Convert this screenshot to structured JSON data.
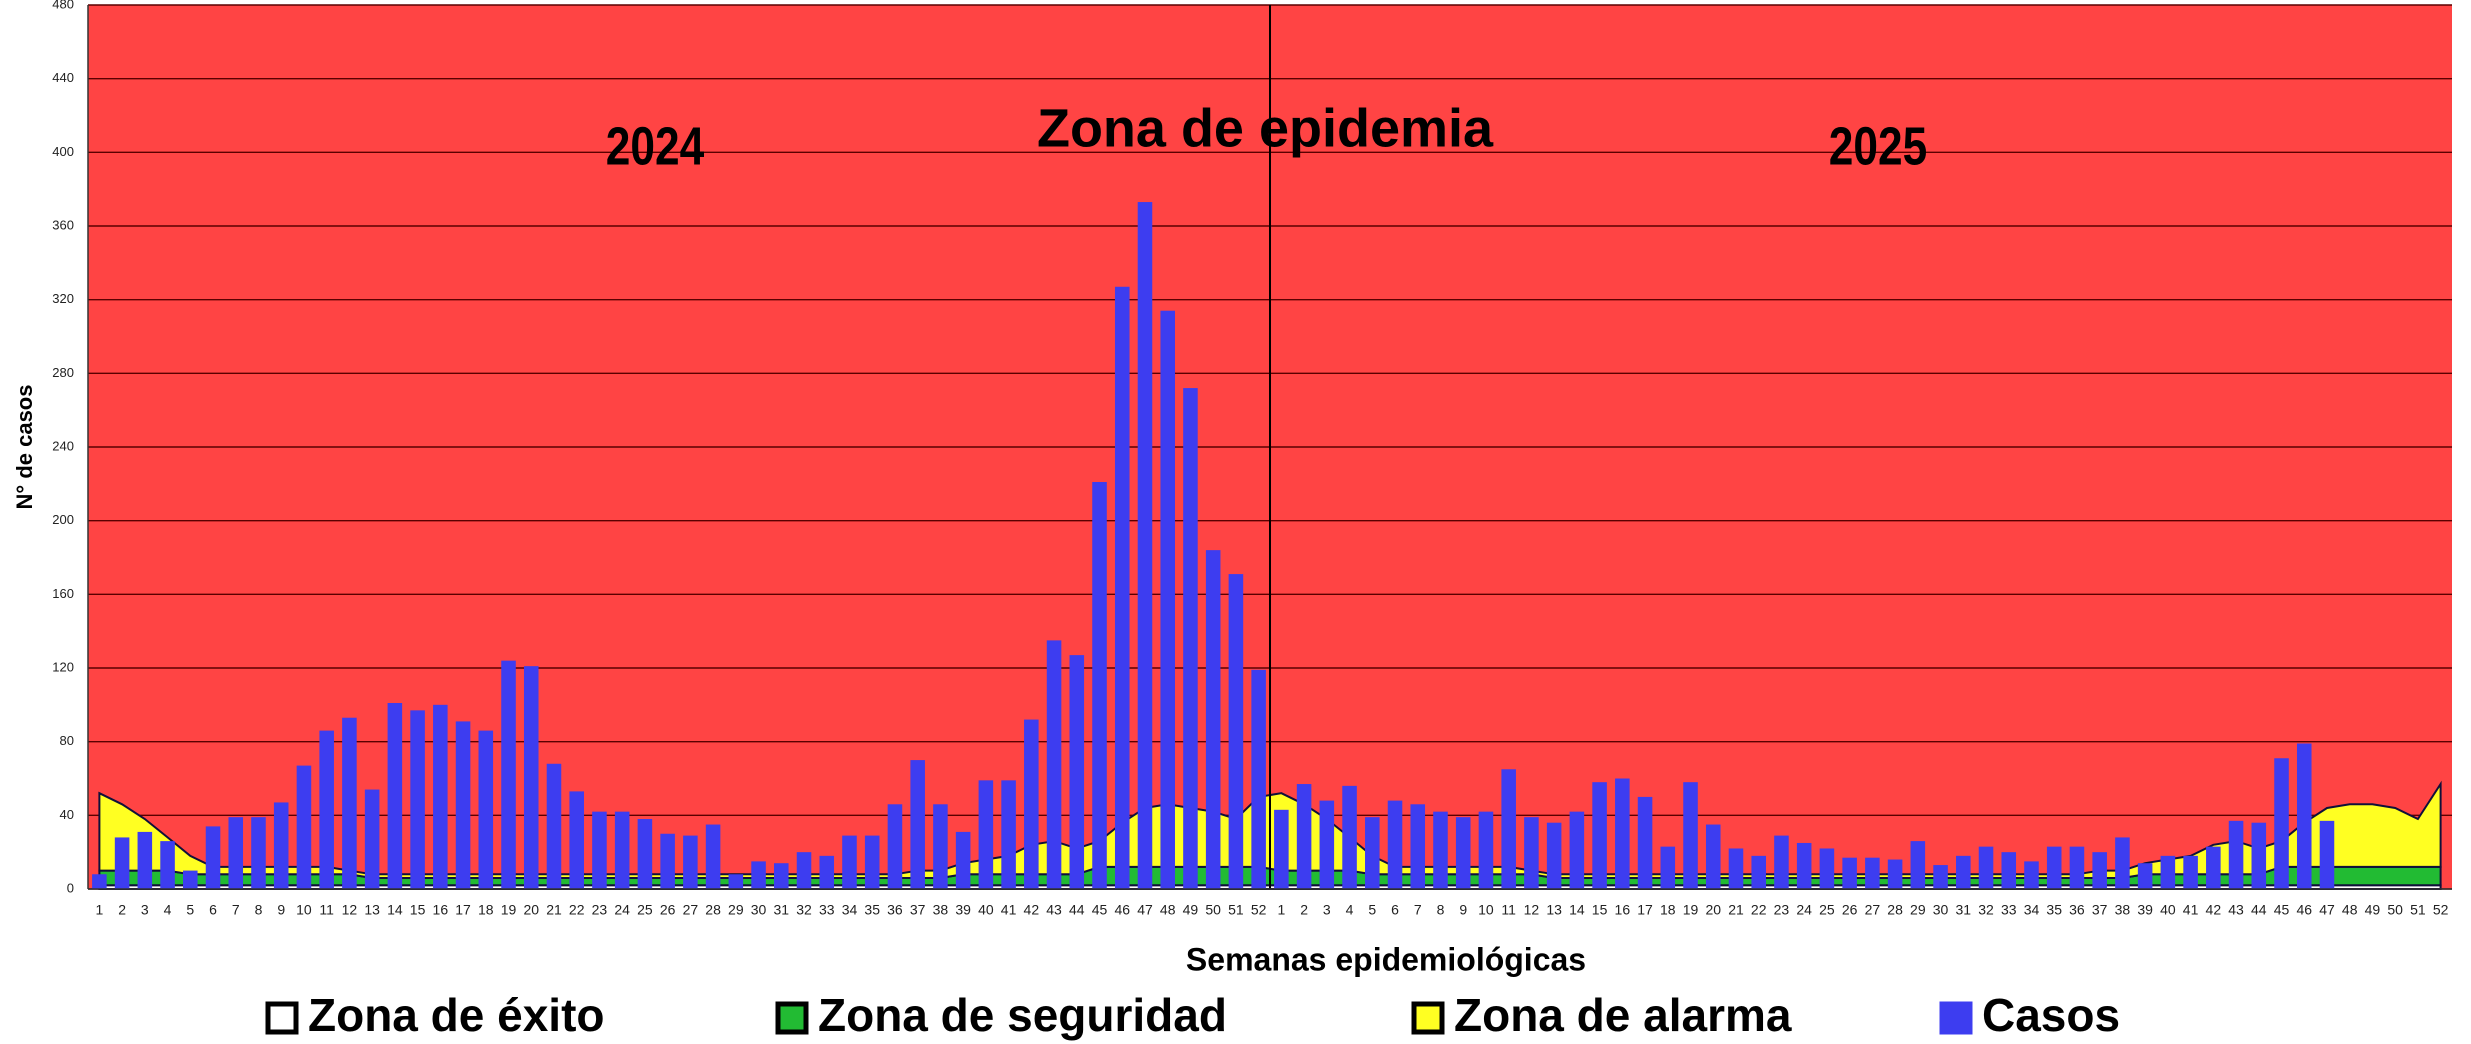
{
  "chart_data": {
    "type": "endemic-channel",
    "annotations": [
      "2024",
      "Zona de epidemia",
      "2025"
    ],
    "x_label": "Semanas epidemiológicas",
    "y_label": "N° de casos",
    "categories": [
      1,
      2,
      3,
      4,
      5,
      6,
      7,
      8,
      9,
      10,
      11,
      12,
      13,
      14,
      15,
      16,
      17,
      18,
      19,
      20,
      21,
      22,
      23,
      24,
      25,
      26,
      27,
      28,
      29,
      30,
      31,
      32,
      33,
      34,
      35,
      36,
      37,
      38,
      39,
      40,
      41,
      42,
      43,
      44,
      45,
      46,
      47,
      48,
      49,
      50,
      51,
      52,
      1,
      2,
      3,
      4,
      5,
      6,
      7,
      8,
      9,
      10,
      11,
      12,
      13,
      14,
      15,
      16,
      17,
      18,
      19,
      20,
      21,
      22,
      23,
      24,
      25,
      26,
      27,
      28,
      29,
      30,
      31,
      32,
      33,
      34,
      35,
      36,
      37,
      38,
      39,
      40,
      41,
      42,
      43,
      44,
      45,
      46,
      47,
      48,
      49,
      50,
      51,
      52
    ],
    "ylim": [
      0,
      480
    ],
    "yticks": [
      0,
      40,
      80,
      120,
      160,
      200,
      240,
      280,
      320,
      360,
      400,
      440,
      480
    ],
    "grid": true,
    "background_color": "#ff4444",
    "zones": [
      {
        "name": "Zona de éxito",
        "color": "#ffffff",
        "values": [
          2,
          2,
          2,
          2,
          2,
          2,
          2,
          2,
          2,
          2,
          2,
          2,
          2,
          2,
          2,
          2,
          2,
          2,
          2,
          2,
          2,
          2,
          2,
          2,
          2,
          2,
          2,
          2,
          2,
          2,
          2,
          2,
          2,
          2,
          2,
          2,
          2,
          2,
          2,
          2,
          2,
          2,
          2,
          2,
          2,
          2,
          2,
          2,
          2,
          2,
          2,
          2,
          2,
          2,
          2,
          2,
          2,
          2,
          2,
          2,
          2,
          2,
          2,
          2,
          2,
          2,
          2,
          2,
          2,
          2,
          2,
          2,
          2,
          2,
          2,
          2,
          2,
          2,
          2,
          2,
          2,
          2,
          2,
          2,
          2,
          2,
          2,
          2,
          2,
          2,
          2,
          2,
          2,
          2,
          2,
          2,
          2,
          2,
          2,
          2,
          2,
          2,
          2,
          2
        ]
      },
      {
        "name": "Zona de seguridad",
        "color": "#22bb33",
        "values": [
          8,
          8,
          8,
          8,
          6,
          6,
          6,
          6,
          6,
          6,
          6,
          6,
          4,
          4,
          4,
          4,
          4,
          4,
          4,
          4,
          4,
          4,
          4,
          4,
          4,
          4,
          4,
          4,
          4,
          4,
          4,
          4,
          4,
          4,
          4,
          4,
          4,
          4,
          6,
          6,
          6,
          6,
          6,
          6,
          10,
          10,
          10,
          10,
          10,
          10,
          10,
          10,
          8,
          8,
          8,
          8,
          6,
          6,
          6,
          6,
          6,
          6,
          6,
          6,
          4,
          4,
          4,
          4,
          4,
          4,
          4,
          4,
          4,
          4,
          4,
          4,
          4,
          4,
          4,
          4,
          4,
          4,
          4,
          4,
          4,
          4,
          4,
          4,
          4,
          4,
          6,
          6,
          6,
          6,
          6,
          6,
          10,
          10,
          10,
          10,
          10,
          10,
          10,
          10
        ]
      },
      {
        "name": "Zona de alarma",
        "color": "#ffff22",
        "values": [
          42,
          36,
          28,
          18,
          10,
          4,
          4,
          4,
          4,
          4,
          4,
          2,
          2,
          2,
          2,
          2,
          2,
          2,
          2,
          2,
          2,
          2,
          2,
          2,
          2,
          2,
          2,
          2,
          2,
          2,
          2,
          2,
          2,
          2,
          2,
          2,
          4,
          4,
          6,
          8,
          10,
          16,
          18,
          14,
          14,
          24,
          32,
          34,
          32,
          30,
          26,
          38,
          42,
          36,
          28,
          18,
          10,
          4,
          4,
          4,
          4,
          4,
          4,
          2,
          2,
          2,
          2,
          2,
          2,
          2,
          2,
          2,
          2,
          2,
          2,
          2,
          2,
          2,
          2,
          2,
          2,
          2,
          2,
          2,
          2,
          2,
          2,
          2,
          4,
          4,
          6,
          8,
          10,
          16,
          18,
          14,
          14,
          24,
          32,
          34,
          34,
          32,
          26,
          45
        ]
      }
    ],
    "series": [
      {
        "name": "Casos",
        "color": "#3d3df0",
        "values": [
          8,
          28,
          31,
          26,
          10,
          34,
          39,
          39,
          47,
          67,
          86,
          93,
          54,
          101,
          97,
          100,
          91,
          86,
          124,
          121,
          68,
          53,
          42,
          42,
          38,
          30,
          29,
          35,
          8,
          15,
          14,
          20,
          18,
          29,
          29,
          46,
          70,
          46,
          31,
          59,
          59,
          92,
          135,
          127,
          221,
          327,
          373,
          314,
          272,
          184,
          171,
          119,
          43,
          57,
          48,
          56,
          39,
          48,
          46,
          42,
          39,
          42,
          65,
          39,
          36,
          42,
          58,
          60,
          50,
          23,
          58,
          35,
          22,
          18,
          29,
          25,
          22,
          17,
          17,
          16,
          26,
          13,
          18,
          23,
          20,
          15,
          23,
          23,
          20,
          28,
          14,
          18,
          18,
          23,
          37,
          36,
          71,
          79,
          37,
          null,
          null,
          null,
          null,
          null
        ]
      }
    ]
  }
}
